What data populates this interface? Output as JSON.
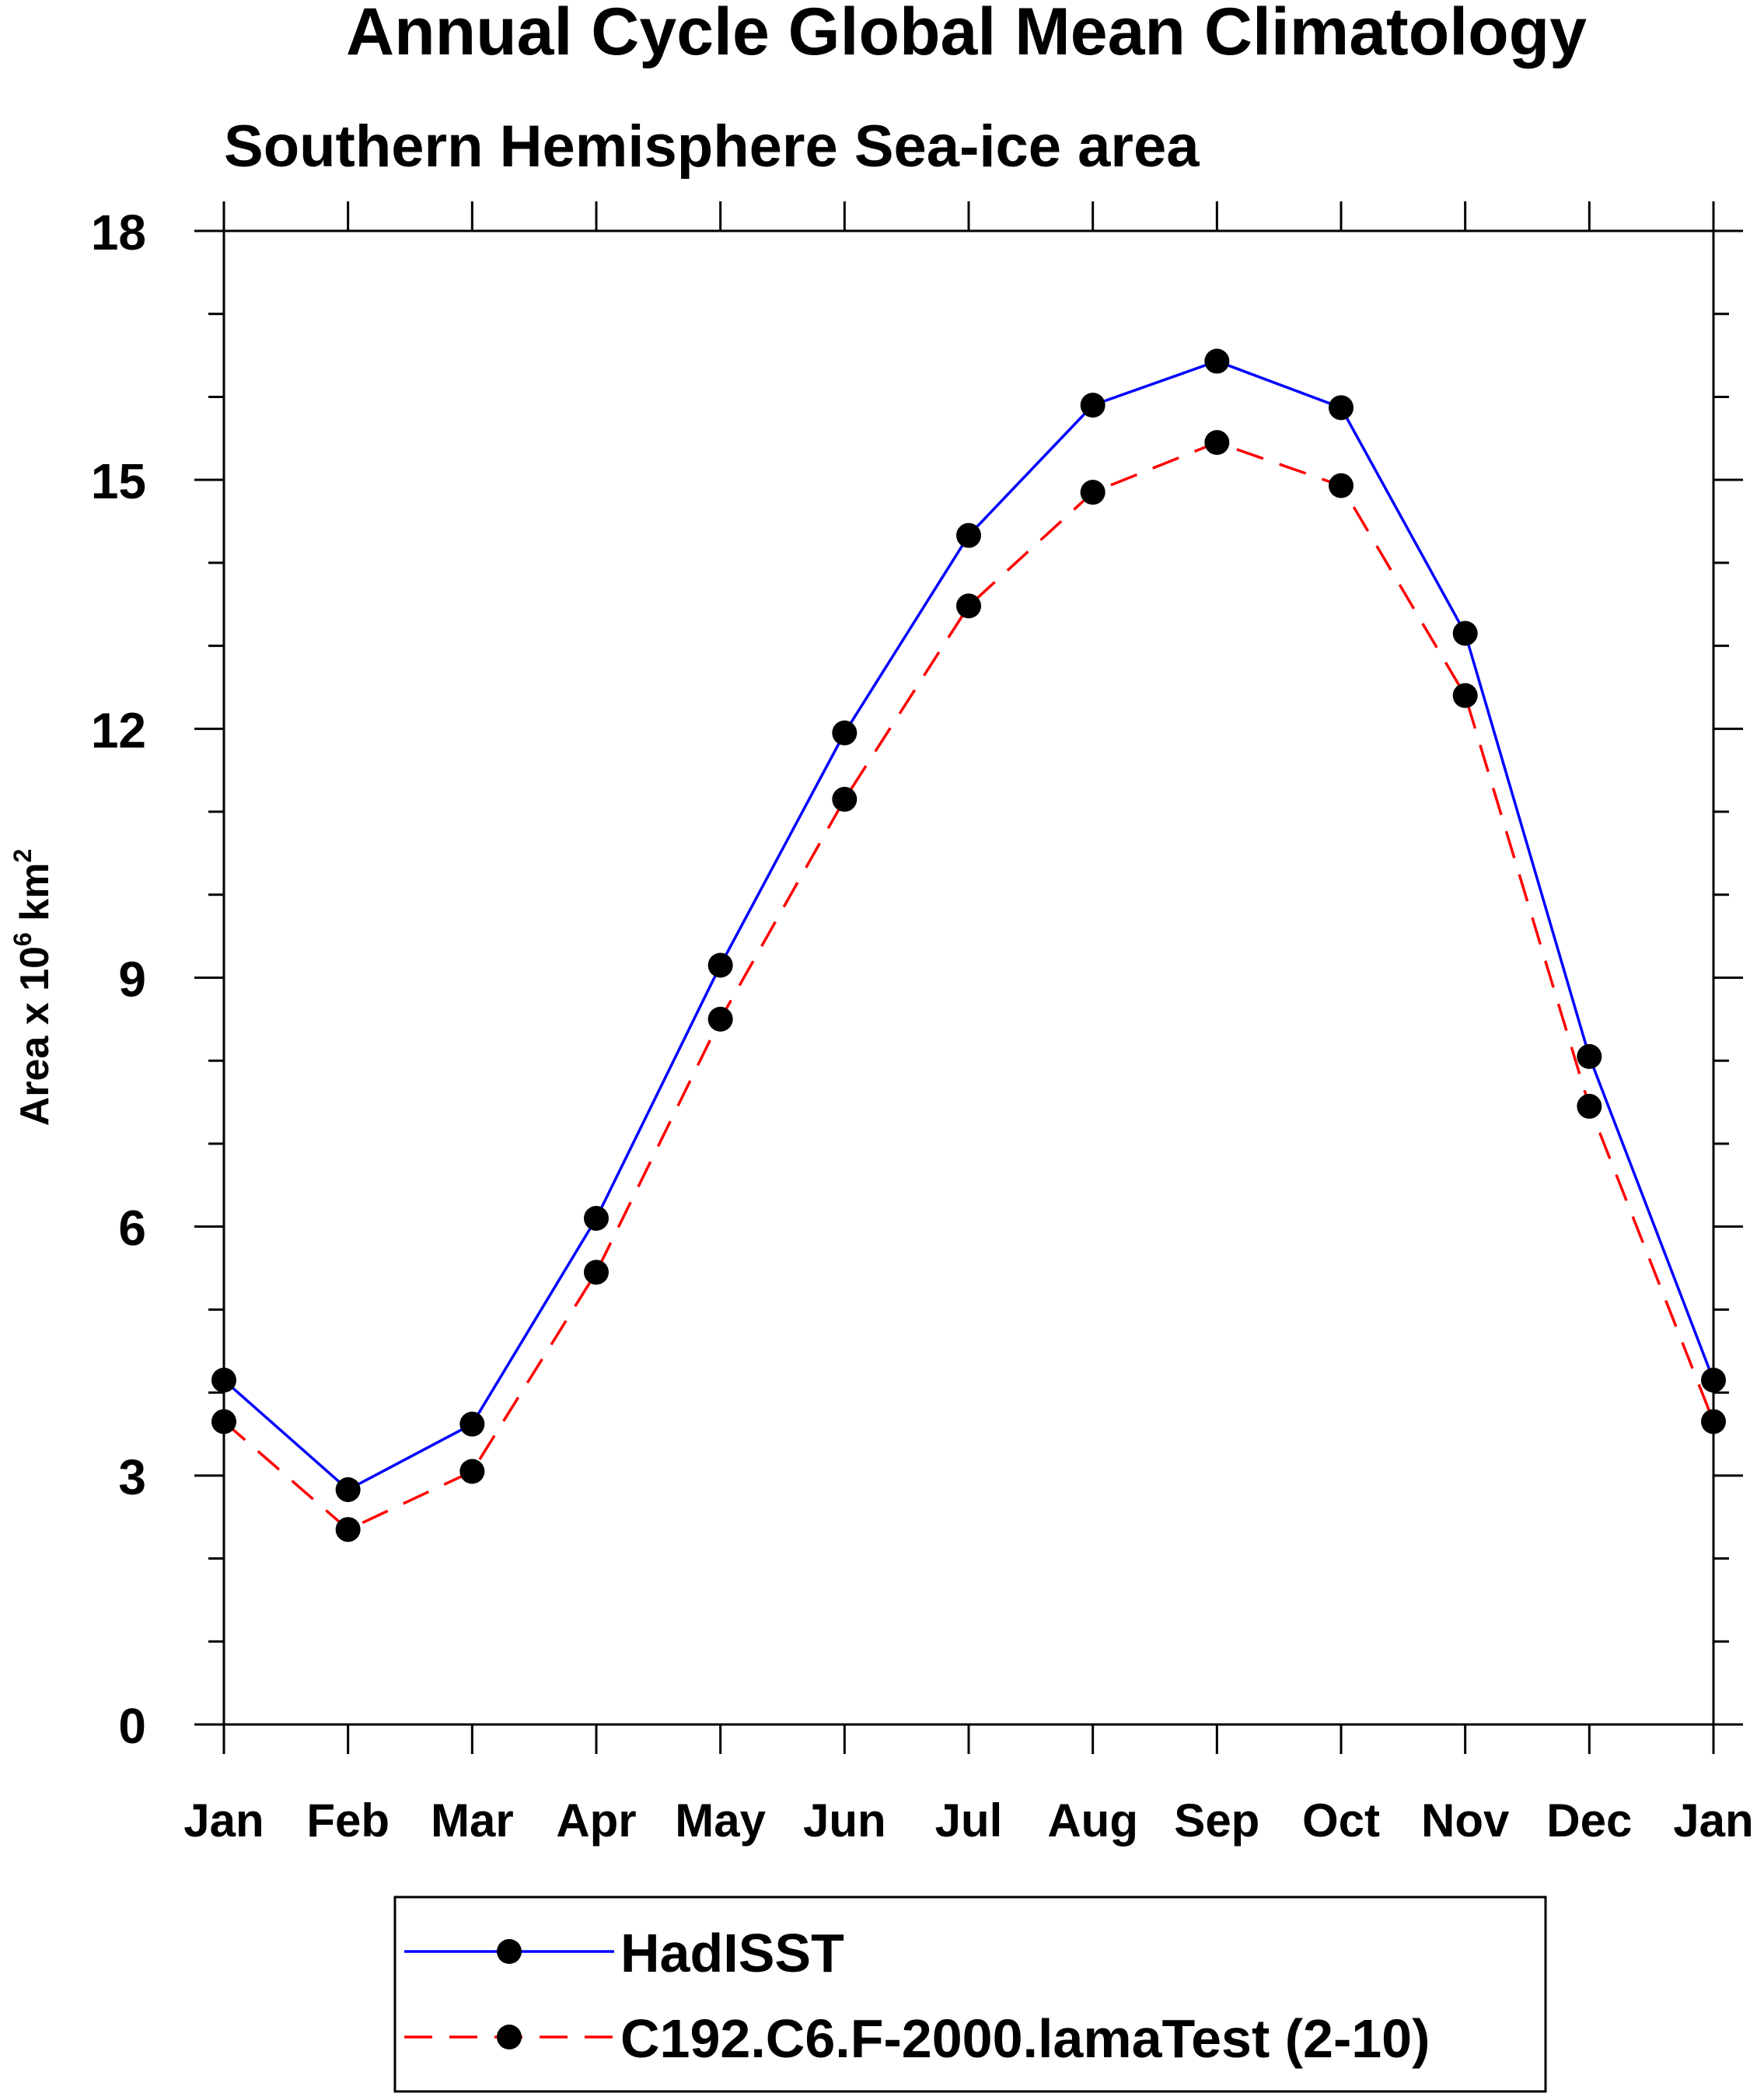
{
  "chart_data": {
    "type": "line",
    "title": "Annual Cycle Global Mean Climatology",
    "subtitle": "Southern Hemisphere Sea-ice area",
    "ylabel": {
      "prefix": "Area x 10",
      "exponent": "6",
      "unit": " km",
      "unit_exponent": "2"
    },
    "xlabel": "",
    "categories": [
      "Jan",
      "Feb",
      "Mar",
      "Apr",
      "May",
      "Jun",
      "Jul",
      "Aug",
      "Sep",
      "Oct",
      "Nov",
      "Dec",
      "Jan"
    ],
    "ylim": [
      0,
      18
    ],
    "yticks": [
      0,
      3,
      6,
      9,
      12,
      15,
      18
    ],
    "y_minor_step": 1,
    "series": [
      {
        "name": "HadISST",
        "color": "#0000ff",
        "dash": "solid",
        "marker": "filled-circle",
        "values": [
          4.15,
          2.83,
          3.62,
          6.1,
          9.15,
          11.95,
          14.33,
          15.9,
          16.43,
          15.87,
          13.15,
          8.05,
          4.15
        ]
      },
      {
        "name": "C192.C6.F-2000.lamaTest (2-10)",
        "color": "#ff0000",
        "dash": "dashed",
        "marker": "filled-circle",
        "values": [
          3.65,
          2.35,
          3.05,
          5.45,
          8.5,
          11.15,
          13.48,
          14.85,
          15.45,
          14.93,
          12.4,
          7.45,
          3.65
        ]
      }
    ],
    "legend": {
      "position": "bottom-center"
    },
    "grid": false
  }
}
